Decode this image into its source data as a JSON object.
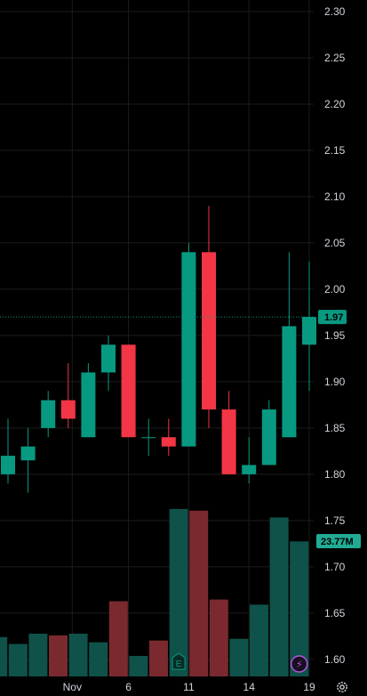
{
  "colors": {
    "background": "#000000",
    "grid": "#1c1c1c",
    "up": "#089981",
    "down": "#f23645",
    "volume_up": "#0f5249",
    "volume_down": "#7a2a2e",
    "text": "#d1d4dc",
    "price_badge": "#089981",
    "volume_badge": "#22ab94",
    "lightning_icon": "#b455e0"
  },
  "chart_data": {
    "type": "candlestick",
    "y_axis": {
      "position": "right",
      "range": [
        1.575,
        2.31
      ],
      "ticks": [
        "2.30",
        "2.25",
        "2.20",
        "2.15",
        "2.10",
        "2.05",
        "2.00",
        "1.95",
        "1.90",
        "1.85",
        "1.80",
        "1.75",
        "1.70",
        "1.65",
        "1.60"
      ]
    },
    "x_axis": {
      "tick_labels": [
        "Nov",
        "6",
        "11",
        "14",
        "19"
      ],
      "label_positions": [
        3.2,
        6,
        9,
        12,
        15
      ]
    },
    "grid": true,
    "last_price": "1.97",
    "last_price_value": 1.97,
    "last_volume": "23.77M",
    "candles": [
      {
        "x": 0,
        "open": 1.8,
        "high": 1.86,
        "low": 1.79,
        "close": 1.82
      },
      {
        "x": 1,
        "open": 1.815,
        "high": 1.85,
        "low": 1.78,
        "close": 1.83
      },
      {
        "x": 2,
        "open": 1.85,
        "high": 1.89,
        "low": 1.84,
        "close": 1.88
      },
      {
        "x": 3,
        "open": 1.88,
        "high": 1.92,
        "low": 1.85,
        "close": 1.86
      },
      {
        "x": 4,
        "open": 1.84,
        "high": 1.92,
        "low": 1.84,
        "close": 1.91
      },
      {
        "x": 5,
        "open": 1.91,
        "high": 1.95,
        "low": 1.89,
        "close": 1.94
      },
      {
        "x": 6,
        "open": 1.94,
        "high": 1.94,
        "low": 1.84,
        "close": 1.84
      },
      {
        "x": 7,
        "open": 1.84,
        "high": 1.86,
        "low": 1.82,
        "close": 1.84
      },
      {
        "x": 8,
        "open": 1.84,
        "high": 1.86,
        "low": 1.82,
        "close": 1.83
      },
      {
        "x": 9,
        "open": 1.83,
        "high": 2.05,
        "low": 1.83,
        "close": 2.04
      },
      {
        "x": 10,
        "open": 2.04,
        "high": 2.09,
        "low": 1.85,
        "close": 1.87
      },
      {
        "x": 11,
        "open": 1.87,
        "high": 1.89,
        "low": 1.8,
        "close": 1.8
      },
      {
        "x": 12,
        "open": 1.8,
        "high": 1.84,
        "low": 1.79,
        "close": 1.81
      },
      {
        "x": 13,
        "open": 1.81,
        "high": 1.88,
        "low": 1.81,
        "close": 1.87
      },
      {
        "x": 14,
        "open": 1.84,
        "high": 2.04,
        "low": 1.84,
        "close": 1.96
      },
      {
        "x": 15,
        "open": 1.94,
        "high": 2.03,
        "low": 1.89,
        "close": 1.97
      }
    ],
    "volume": {
      "unit": "fraction of pane max",
      "bars": [
        {
          "x": -0.5,
          "value": 0.23,
          "dir": "up"
        },
        {
          "x": 0.5,
          "value": 0.19,
          "dir": "up"
        },
        {
          "x": 1.5,
          "value": 0.25,
          "dir": "up"
        },
        {
          "x": 2.5,
          "value": 0.24,
          "dir": "down"
        },
        {
          "x": 3.5,
          "value": 0.25,
          "dir": "up"
        },
        {
          "x": 4.5,
          "value": 0.2,
          "dir": "up"
        },
        {
          "x": 5.5,
          "value": 0.44,
          "dir": "down"
        },
        {
          "x": 6.5,
          "value": 0.12,
          "dir": "up"
        },
        {
          "x": 7.5,
          "value": 0.21,
          "dir": "down"
        },
        {
          "x": 8.5,
          "value": 0.98,
          "dir": "up"
        },
        {
          "x": 9.5,
          "value": 0.97,
          "dir": "down"
        },
        {
          "x": 10.5,
          "value": 0.45,
          "dir": "down"
        },
        {
          "x": 11.5,
          "value": 0.22,
          "dir": "up"
        },
        {
          "x": 12.5,
          "value": 0.42,
          "dir": "up"
        },
        {
          "x": 13.5,
          "value": 0.93,
          "dir": "up"
        },
        {
          "x": 14.5,
          "value": 0.79,
          "dir": "up"
        }
      ]
    },
    "markers": [
      {
        "name": "earnings-marker",
        "label": "E",
        "x": 8.5
      },
      {
        "name": "lightning-marker",
        "label": "⚡",
        "x": 14.5
      }
    ]
  },
  "toolbar": {
    "settings_icon": "gear-icon"
  }
}
